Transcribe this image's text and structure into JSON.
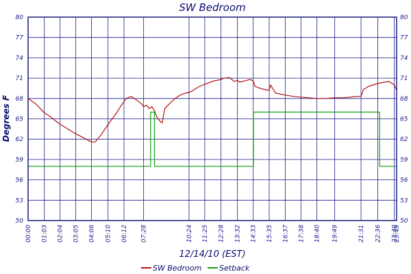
{
  "chart_data": {
    "type": "line",
    "title": "SW Bedroom",
    "xlabel": "12/14/10 (EST)",
    "ylabel": "Degrees F",
    "ylim": [
      50,
      80
    ],
    "y_ticks": [
      "50",
      "53",
      "56",
      "59",
      "62",
      "65",
      "68",
      "71",
      "74",
      "77",
      "80"
    ],
    "y_tick_values": [
      50,
      53,
      56,
      59,
      62,
      65,
      68,
      71,
      74,
      77,
      80
    ],
    "x_unit": "minutes since 00:00",
    "xlim": [
      0,
      1429
    ],
    "x_ticks": [
      "00:00",
      "01:03",
      "02:04",
      "03:05",
      "04:06",
      "05:10",
      "06:12",
      "07:28",
      "10:24",
      "11:25",
      "12:28",
      "13:32",
      "14:33",
      "15:35",
      "16:37",
      "17:38",
      "18:40",
      "19:49",
      "21:31",
      "22:36",
      "23:40",
      "23:49"
    ],
    "x_tick_values": [
      0,
      63,
      124,
      185,
      246,
      310,
      372,
      448,
      624,
      685,
      748,
      812,
      873,
      935,
      997,
      1058,
      1120,
      1189,
      1291,
      1356,
      1420,
      1429
    ],
    "grid": true,
    "legend_position": "bottom",
    "series": [
      {
        "name": "SW Bedroom",
        "color": "#b01010",
        "x": [
          0,
          30,
          60,
          90,
          120,
          150,
          180,
          210,
          230,
          246,
          260,
          280,
          300,
          320,
          340,
          360,
          380,
          400,
          420,
          440,
          448,
          460,
          470,
          480,
          490,
          500,
          515,
          520,
          530,
          550,
          570,
          590,
          610,
          624,
          640,
          660,
          685,
          700,
          720,
          748,
          760,
          780,
          800,
          812,
          820,
          840,
          860,
          873,
          880,
          900,
          920,
          935,
          940,
          960,
          997,
          1030,
          1058,
          1090,
          1120,
          1150,
          1189,
          1220,
          1250,
          1270,
          1291,
          1300,
          1320,
          1356,
          1380,
          1400,
          1420,
          1429
        ],
        "values": [
          68.0,
          67.2,
          66.0,
          65.2,
          64.3,
          63.6,
          62.9,
          62.3,
          61.9,
          61.6,
          61.6,
          62.5,
          63.6,
          64.7,
          65.7,
          66.9,
          68.0,
          68.3,
          67.8,
          67.2,
          66.8,
          67.0,
          66.5,
          66.8,
          66.2,
          65.2,
          64.5,
          64.4,
          66.5,
          67.3,
          68.0,
          68.5,
          68.8,
          68.9,
          69.2,
          69.7,
          70.1,
          70.3,
          70.6,
          70.8,
          71.0,
          71.1,
          70.5,
          70.7,
          70.4,
          70.6,
          70.8,
          70.6,
          69.8,
          69.5,
          69.3,
          69.2,
          70.0,
          68.8,
          68.5,
          68.3,
          68.2,
          68.1,
          68.0,
          68.0,
          68.1,
          68.1,
          68.2,
          68.3,
          68.3,
          69.3,
          69.8,
          70.2,
          70.4,
          70.5,
          70.0,
          69.2
        ]
      },
      {
        "name": "Setback",
        "color": "#10a010",
        "x": [
          0,
          475,
          475,
          490,
          490,
          874,
          874,
          1363,
          1363,
          1429
        ],
        "values": [
          58,
          58,
          66,
          66,
          58,
          58,
          66,
          66,
          58,
          58
        ]
      }
    ]
  }
}
